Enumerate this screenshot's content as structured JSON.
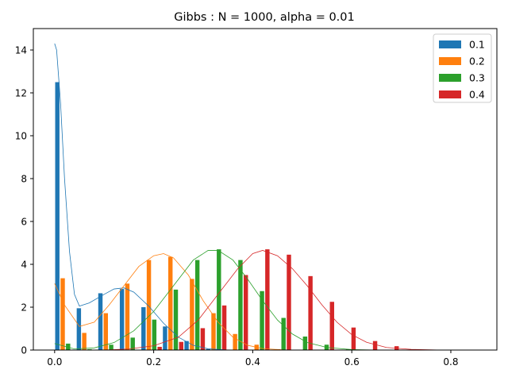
{
  "chart_data": {
    "type": "bar",
    "title": "Gibbs : N = 1000, alpha = 0.01",
    "xlabel": "",
    "ylabel": "",
    "xlim": [
      -0.043,
      0.893
    ],
    "ylim": [
      0,
      15
    ],
    "xticks": [
      0.0,
      0.2,
      0.4,
      0.6,
      0.8
    ],
    "xtick_labels": [
      "0.0",
      "0.2",
      "0.4",
      "0.6",
      "0.8"
    ],
    "yticks": [
      0,
      2,
      4,
      6,
      8,
      10,
      12,
      14
    ],
    "ytick_labels": [
      "0",
      "2",
      "4",
      "6",
      "8",
      "10",
      "12",
      "14"
    ],
    "grid": false,
    "legend_position": "top-right",
    "bin_starts": [
      0.0,
      0.0435,
      0.087,
      0.1305,
      0.174,
      0.2175,
      0.261,
      0.3045,
      0.348,
      0.3915,
      0.435,
      0.4785,
      0.522,
      0.5655,
      0.609,
      0.6525,
      0.696,
      0.7395,
      0.783
    ],
    "bin_width": 0.0435,
    "series": [
      {
        "name": "0.1",
        "color": "#1f77b4",
        "values": [
          12.5,
          1.95,
          2.65,
          2.85,
          2.0,
          1.1,
          0.42,
          0.05,
          0.0,
          0.0,
          0.0,
          0.0,
          0.0,
          0.0,
          0.0,
          0.0,
          0.0,
          0.0,
          0.0
        ],
        "kde": [
          [
            0.0,
            14.3
          ],
          [
            0.004,
            14.0
          ],
          [
            0.012,
            11.5
          ],
          [
            0.02,
            8.0
          ],
          [
            0.03,
            4.6
          ],
          [
            0.04,
            2.6
          ],
          [
            0.05,
            2.05
          ],
          [
            0.07,
            2.2
          ],
          [
            0.1,
            2.6
          ],
          [
            0.12,
            2.85
          ],
          [
            0.14,
            2.9
          ],
          [
            0.16,
            2.7
          ],
          [
            0.19,
            2.05
          ],
          [
            0.22,
            1.25
          ],
          [
            0.25,
            0.6
          ],
          [
            0.28,
            0.22
          ],
          [
            0.31,
            0.06
          ],
          [
            0.35,
            0.0
          ],
          [
            0.4,
            0.0
          ]
        ]
      },
      {
        "name": "0.2",
        "color": "#ff7f0e",
        "values": [
          3.35,
          0.8,
          1.72,
          3.1,
          4.2,
          4.35,
          3.32,
          1.72,
          0.75,
          0.25,
          0.04,
          0.0,
          0.0,
          0.0,
          0.0,
          0.0,
          0.0,
          0.0,
          0.0
        ],
        "kde": [
          [
            0.0,
            3.1
          ],
          [
            0.02,
            2.1
          ],
          [
            0.05,
            1.1
          ],
          [
            0.08,
            1.3
          ],
          [
            0.11,
            2.1
          ],
          [
            0.14,
            3.0
          ],
          [
            0.17,
            3.9
          ],
          [
            0.2,
            4.4
          ],
          [
            0.22,
            4.5
          ],
          [
            0.24,
            4.3
          ],
          [
            0.27,
            3.5
          ],
          [
            0.3,
            2.3
          ],
          [
            0.33,
            1.3
          ],
          [
            0.36,
            0.6
          ],
          [
            0.39,
            0.22
          ],
          [
            0.42,
            0.07
          ],
          [
            0.46,
            0.01
          ],
          [
            0.5,
            0.0
          ]
        ]
      },
      {
        "name": "0.3",
        "color": "#2ca02c",
        "values": [
          0.3,
          0.04,
          0.25,
          0.58,
          1.42,
          2.82,
          4.2,
          4.7,
          4.2,
          2.75,
          1.5,
          0.63,
          0.25,
          0.04,
          0.0,
          0.0,
          0.0,
          0.0,
          0.0
        ],
        "kde": [
          [
            0.0,
            0.3
          ],
          [
            0.04,
            0.05
          ],
          [
            0.08,
            0.1
          ],
          [
            0.12,
            0.35
          ],
          [
            0.16,
            0.9
          ],
          [
            0.2,
            1.8
          ],
          [
            0.24,
            3.0
          ],
          [
            0.28,
            4.2
          ],
          [
            0.31,
            4.65
          ],
          [
            0.33,
            4.65
          ],
          [
            0.36,
            4.2
          ],
          [
            0.39,
            3.3
          ],
          [
            0.42,
            2.3
          ],
          [
            0.45,
            1.4
          ],
          [
            0.48,
            0.75
          ],
          [
            0.51,
            0.35
          ],
          [
            0.55,
            0.12
          ],
          [
            0.6,
            0.02
          ],
          [
            0.65,
            0.0
          ]
        ]
      },
      {
        "name": "0.4",
        "color": "#d62728",
        "values": [
          0.0,
          0.0,
          0.0,
          0.0,
          0.15,
          0.38,
          1.02,
          2.08,
          3.5,
          4.7,
          4.45,
          3.45,
          2.25,
          1.05,
          0.42,
          0.18,
          0.03,
          0.0,
          0.0
        ],
        "kde": [
          [
            0.1,
            0.0
          ],
          [
            0.15,
            0.05
          ],
          [
            0.2,
            0.2
          ],
          [
            0.25,
            0.6
          ],
          [
            0.29,
            1.4
          ],
          [
            0.33,
            2.6
          ],
          [
            0.37,
            3.8
          ],
          [
            0.4,
            4.5
          ],
          [
            0.42,
            4.65
          ],
          [
            0.45,
            4.4
          ],
          [
            0.48,
            3.8
          ],
          [
            0.51,
            3.0
          ],
          [
            0.54,
            2.1
          ],
          [
            0.57,
            1.3
          ],
          [
            0.6,
            0.72
          ],
          [
            0.63,
            0.36
          ],
          [
            0.67,
            0.12
          ],
          [
            0.72,
            0.03
          ],
          [
            0.78,
            0.0
          ],
          [
            0.85,
            0.0
          ]
        ]
      }
    ]
  }
}
